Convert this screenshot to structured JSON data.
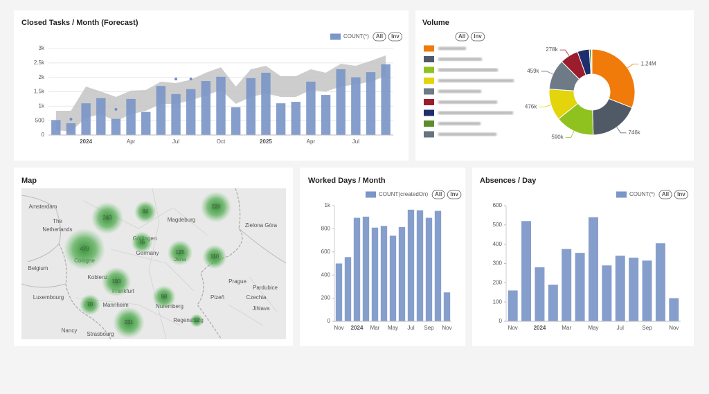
{
  "chart_data": [
    {
      "type": "bar",
      "title": "Closed Tasks / Month (Forecast)",
      "categories": [
        null,
        null,
        "2024",
        null,
        null,
        "Apr",
        null,
        null,
        "Jul",
        null,
        null,
        "Oct",
        null,
        null,
        "2025",
        null,
        null,
        "Apr",
        null,
        null,
        "Jul",
        null,
        null
      ],
      "series": [
        {
          "name": "COUNT(*)",
          "color": "#7b96c8",
          "values": [
            520,
            410,
            1100,
            1280,
            560,
            1250,
            800,
            1700,
            1420,
            1590,
            1870,
            2020,
            960,
            1970,
            2160,
            1100,
            1150,
            1850,
            1390,
            2280,
            2000,
            2180,
            2450
          ]
        }
      ],
      "forecast_band": {
        "color": "#c4c4c4",
        "lower": [
          170,
          120,
          600,
          720,
          480,
          720,
          840,
          1080,
          1080,
          1200,
          1370,
          1560,
          1080,
          1320,
          1440,
          1320,
          1320,
          1560,
          1510,
          1680,
          1750,
          1850,
          2040
        ],
        "upper": [
          840,
          840,
          1680,
          1510,
          1320,
          1540,
          1560,
          1850,
          1800,
          1920,
          2160,
          2350,
          1680,
          2280,
          2400,
          2040,
          2040,
          2280,
          2160,
          2470,
          2400,
          2570,
          2760
        ]
      },
      "forecast_points": {
        "color": "#6f8dc4",
        "values": [
          null,
          550,
          null,
          null,
          890,
          null,
          null,
          null,
          1940,
          1940,
          null,
          null,
          null,
          null,
          null,
          null,
          null,
          null,
          null,
          null,
          null,
          null,
          null
        ]
      },
      "ylim": [
        0,
        3000
      ],
      "yticks": [
        0,
        500,
        {
          "value": 1000,
          "label": "1k"
        },
        {
          "value": 1500,
          "label": "1.5k"
        },
        {
          "value": 2000,
          "label": "2k"
        },
        {
          "value": 2500,
          "label": "2.5k"
        },
        {
          "value": 3000,
          "label": "3k"
        }
      ],
      "grid": true,
      "legend_buttons": [
        "All",
        "Inv"
      ]
    },
    {
      "type": "pie",
      "title": "Volume",
      "categories": [
        null,
        null,
        null,
        null,
        null,
        null,
        null,
        null,
        null
      ],
      "values": [
        1240000,
        746000,
        590000,
        476000,
        459000,
        278000,
        180000,
        30000,
        10000
      ],
      "value_labels": [
        "1.24M",
        "746k",
        "590k",
        "476k",
        "459k",
        "278k",
        null,
        null,
        null
      ],
      "colors": [
        "#f07a0a",
        "#4f5a66",
        "#8fc21f",
        "#e3d40c",
        "#6e7a86",
        "#9b1c2c",
        "#1f2f6e",
        "#5e8c2a",
        "#667380"
      ],
      "donut": true,
      "legend_buttons": [
        "All",
        "Inv"
      ]
    },
    {
      "type": "bar",
      "title": "Worked Days / Month",
      "categories": [
        "Nov",
        null,
        "2024",
        null,
        "Mar",
        null,
        "May",
        null,
        "Jul",
        null,
        "Sep",
        null,
        "Nov"
      ],
      "series": [
        {
          "name": "COUNT(createdOn)",
          "color": "#7b96c8",
          "values": [
            500,
            555,
            895,
            905,
            810,
            825,
            740,
            815,
            965,
            960,
            895,
            955,
            250
          ]
        }
      ],
      "ylim": [
        0,
        1000
      ],
      "yticks": [
        0,
        200,
        400,
        600,
        800,
        {
          "value": 1000,
          "label": "1k"
        }
      ],
      "grid": false,
      "legend_buttons": [
        "All",
        "Inv"
      ]
    },
    {
      "type": "bar",
      "title": "Absences / Day",
      "categories": [
        "Nov",
        null,
        "2024",
        null,
        "Mar",
        null,
        "May",
        null,
        "Jul",
        null,
        "Sep",
        null,
        "Nov"
      ],
      "series": [
        {
          "name": "COUNT(*)",
          "color": "#7b96c8",
          "values": [
            160,
            520,
            280,
            190,
            375,
            355,
            540,
            290,
            340,
            330,
            315,
            405,
            120
          ]
        }
      ],
      "ylim": [
        0,
        600
      ],
      "yticks": [
        0,
        100,
        200,
        300,
        400,
        500,
        600
      ],
      "grid": false,
      "legend_buttons": [
        "All",
        "Inv"
      ]
    }
  ],
  "map": {
    "title": "Map",
    "clusters": [
      243,
      479,
      84,
      75,
      125,
      220,
      110,
      193,
      98,
      70,
      231,
      12
    ],
    "places": [
      "Amsterdam",
      "The",
      "Netherlands",
      "Belgium",
      "Luxembourg",
      "Germany",
      "Prague",
      "Czechia",
      "Cologne",
      "Koblenz",
      "Frankfurt",
      "Mannheim",
      "Nuremberg",
      "Regensburg",
      "Nancy",
      "Strasbourg",
      "Magdeburg",
      "Göttingen",
      "Jena",
      "Zielona Góra",
      "Pardubice",
      "Jihlava",
      "Plzeň"
    ]
  }
}
